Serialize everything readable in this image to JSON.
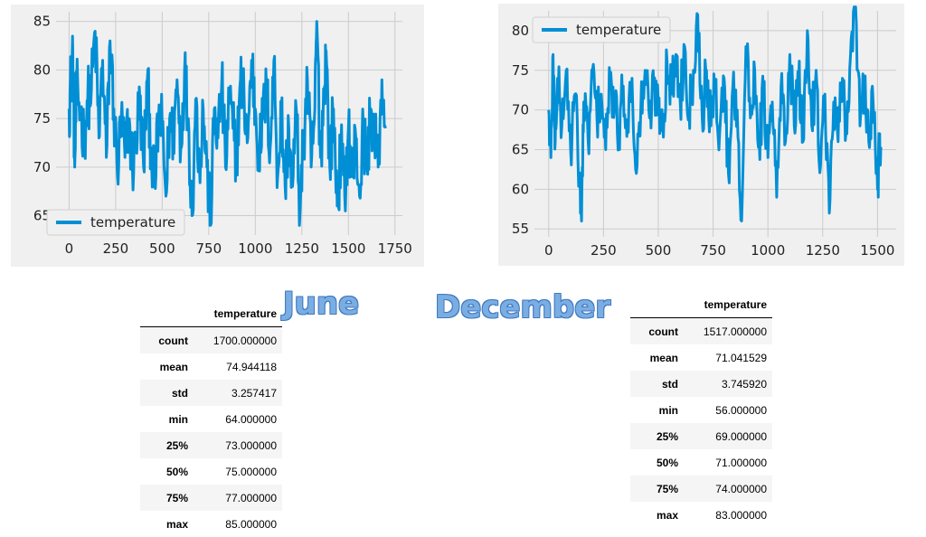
{
  "chart_data": [
    {
      "type": "line",
      "series": [
        {
          "name": "temperature",
          "count": 1700,
          "min": 64,
          "max": 85,
          "mean": 74.944118,
          "approx_profile": [
            [
              0,
              76
            ],
            [
              10,
              79
            ],
            [
              20,
              82
            ],
            [
              30,
              70
            ],
            [
              40,
              78
            ],
            [
              60,
              76
            ],
            [
              80,
              73
            ],
            [
              100,
              77
            ],
            [
              120,
              78
            ],
            [
              140,
              84
            ],
            [
              160,
              73
            ],
            [
              180,
              81
            ],
            [
              200,
              71
            ],
            [
              220,
              83
            ],
            [
              240,
              76
            ],
            [
              260,
              69
            ],
            [
              280,
              75
            ],
            [
              300,
              71
            ],
            [
              320,
              75
            ],
            [
              340,
              70
            ],
            [
              360,
              73
            ],
            [
              380,
              77
            ],
            [
              400,
              70
            ],
            [
              420,
              79
            ],
            [
              440,
              72
            ],
            [
              460,
              68
            ],
            [
              480,
              75
            ],
            [
              500,
              74
            ],
            [
              520,
              67
            ],
            [
              540,
              75
            ],
            [
              560,
              73
            ],
            [
              580,
              79
            ],
            [
              600,
              72
            ],
            [
              620,
              80
            ],
            [
              640,
              75
            ],
            [
              660,
              65
            ],
            [
              680,
              77
            ],
            [
              700,
              70
            ],
            [
              720,
              76
            ],
            [
              740,
              70
            ],
            [
              760,
              64
            ],
            [
              780,
              76
            ],
            [
              800,
              73
            ],
            [
              820,
              79
            ],
            [
              840,
              70
            ],
            [
              860,
              77
            ],
            [
              880,
              74
            ],
            [
              900,
              71
            ],
            [
              920,
              79
            ],
            [
              940,
              77
            ],
            [
              960,
              73
            ],
            [
              980,
              81
            ],
            [
              1000,
              76
            ],
            [
              1020,
              71
            ],
            [
              1040,
              75
            ],
            [
              1060,
              78
            ],
            [
              1080,
              72
            ],
            [
              1100,
              81
            ],
            [
              1120,
              69
            ],
            [
              1140,
              76
            ],
            [
              1160,
              68
            ],
            [
              1180,
              74
            ],
            [
              1200,
              68
            ],
            [
              1220,
              76
            ],
            [
              1240,
              65
            ],
            [
              1260,
              73
            ],
            [
              1280,
              79
            ],
            [
              1300,
              70
            ],
            [
              1320,
              76
            ],
            [
              1330,
              85
            ],
            [
              1350,
              71
            ],
            [
              1370,
              78
            ],
            [
              1380,
              82
            ],
            [
              1400,
              70
            ],
            [
              1420,
              76
            ],
            [
              1440,
              66
            ],
            [
              1460,
              72
            ],
            [
              1480,
              67
            ],
            [
              1500,
              74
            ],
            [
              1520,
              69
            ],
            [
              1540,
              73
            ],
            [
              1560,
              67
            ],
            [
              1580,
              74
            ],
            [
              1600,
              70
            ],
            [
              1620,
              76
            ],
            [
              1640,
              73
            ],
            [
              1660,
              70
            ],
            [
              1680,
              79
            ],
            [
              1699,
              74
            ]
          ]
        }
      ],
      "xlim": [
        -70,
        1790
      ],
      "ylim": [
        63,
        86
      ],
      "xticks": [
        0,
        250,
        500,
        750,
        1000,
        1250,
        1500,
        1750
      ],
      "yticks": [
        65,
        70,
        75,
        80,
        85
      ],
      "legend_position": "lower-left",
      "grid": true,
      "color": "#008fd5"
    },
    {
      "type": "line",
      "series": [
        {
          "name": "temperature",
          "count": 1517,
          "min": 56,
          "max": 83,
          "mean": 71.041529,
          "approx_profile": [
            [
              0,
              70
            ],
            [
              10,
              64
            ],
            [
              20,
              77
            ],
            [
              30,
              66
            ],
            [
              40,
              74
            ],
            [
              60,
              68
            ],
            [
              80,
              75
            ],
            [
              100,
              65
            ],
            [
              120,
              72
            ],
            [
              140,
              62
            ],
            [
              150,
              56
            ],
            [
              160,
              71
            ],
            [
              180,
              66
            ],
            [
              200,
              75
            ],
            [
              220,
              69
            ],
            [
              240,
              72
            ],
            [
              260,
              65
            ],
            [
              280,
              74
            ],
            [
              300,
              70
            ],
            [
              320,
              67
            ],
            [
              340,
              73
            ],
            [
              360,
              68
            ],
            [
              380,
              74
            ],
            [
              400,
              62
            ],
            [
              420,
              70
            ],
            [
              440,
              75
            ],
            [
              460,
              69
            ],
            [
              480,
              73
            ],
            [
              500,
              71
            ],
            [
              520,
              68
            ],
            [
              540,
              76
            ],
            [
              560,
              72
            ],
            [
              580,
              77
            ],
            [
              600,
              71
            ],
            [
              620,
              78
            ],
            [
              640,
              70
            ],
            [
              660,
              75
            ],
            [
              680,
              82
            ],
            [
              700,
              69
            ],
            [
              720,
              75
            ],
            [
              740,
              68
            ],
            [
              760,
              73
            ],
            [
              780,
              67
            ],
            [
              800,
              74
            ],
            [
              820,
              62
            ],
            [
              840,
              73
            ],
            [
              860,
              70
            ],
            [
              880,
              56
            ],
            [
              900,
              78
            ],
            [
              920,
              69
            ],
            [
              940,
              75
            ],
            [
              960,
              66
            ],
            [
              980,
              72
            ],
            [
              1000,
              64
            ],
            [
              1020,
              71
            ],
            [
              1040,
              59
            ],
            [
              1060,
              73
            ],
            [
              1080,
              66
            ],
            [
              1100,
              77
            ],
            [
              1120,
              68
            ],
            [
              1140,
              74
            ],
            [
              1160,
              66
            ],
            [
              1180,
              80
            ],
            [
              1200,
              68
            ],
            [
              1220,
              75
            ],
            [
              1240,
              63
            ],
            [
              1260,
              72
            ],
            [
              1280,
              57
            ],
            [
              1300,
              71
            ],
            [
              1320,
              66
            ],
            [
              1340,
              74
            ],
            [
              1360,
              67
            ],
            [
              1380,
              79
            ],
            [
              1400,
              83
            ],
            [
              1420,
              68
            ],
            [
              1440,
              73
            ],
            [
              1460,
              66
            ],
            [
              1480,
              71
            ],
            [
              1500,
              60
            ],
            [
              1510,
              67
            ],
            [
              1516,
              65
            ]
          ]
        }
      ],
      "xlim": [
        -65,
        1585
      ],
      "ylim": [
        54,
        82.5
      ],
      "xticks": [
        0,
        250,
        500,
        750,
        1000,
        1250,
        1500
      ],
      "yticks": [
        55,
        60,
        65,
        70,
        75,
        80
      ],
      "legend_position": "upper-left",
      "grid": true,
      "color": "#008fd5"
    }
  ],
  "labels": {
    "june": "June",
    "december": "December"
  },
  "tables": {
    "june": {
      "header": "temperature",
      "rows": [
        {
          "stat": "count",
          "value": "1700.000000"
        },
        {
          "stat": "mean",
          "value": "74.944118"
        },
        {
          "stat": "std",
          "value": "3.257417"
        },
        {
          "stat": "min",
          "value": "64.000000"
        },
        {
          "stat": "25%",
          "value": "73.000000"
        },
        {
          "stat": "50%",
          "value": "75.000000"
        },
        {
          "stat": "75%",
          "value": "77.000000"
        },
        {
          "stat": "max",
          "value": "85.000000"
        }
      ]
    },
    "december": {
      "header": "temperature",
      "rows": [
        {
          "stat": "count",
          "value": "1517.000000"
        },
        {
          "stat": "mean",
          "value": "71.041529"
        },
        {
          "stat": "std",
          "value": "3.745920"
        },
        {
          "stat": "min",
          "value": "56.000000"
        },
        {
          "stat": "25%",
          "value": "69.000000"
        },
        {
          "stat": "50%",
          "value": "71.000000"
        },
        {
          "stat": "75%",
          "value": "74.000000"
        },
        {
          "stat": "max",
          "value": "83.000000"
        }
      ]
    }
  }
}
